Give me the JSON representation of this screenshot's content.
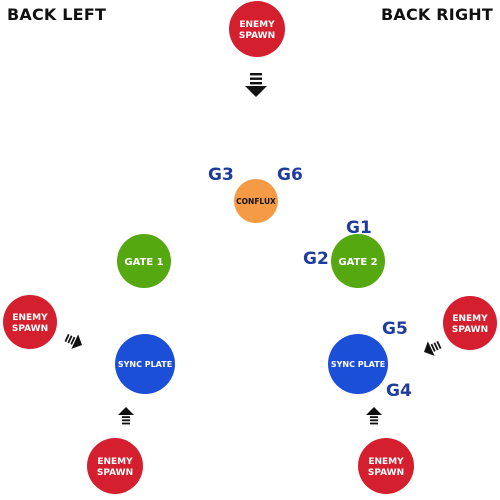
{
  "header": {
    "back_left": "BACK LEFT",
    "back_right": "BACK RIGHT"
  },
  "nodes": {
    "enemy_spawn_top": {
      "line1": "ENEMY",
      "line2": "SPAWN",
      "color": "#d4202e"
    },
    "enemy_spawn_left": {
      "line1": "ENEMY",
      "line2": "SPAWN",
      "color": "#d4202e"
    },
    "enemy_spawn_right": {
      "line1": "ENEMY",
      "line2": "SPAWN",
      "color": "#d4202e"
    },
    "enemy_spawn_bottom_left": {
      "line1": "ENEMY",
      "line2": "SPAWN",
      "color": "#d4202e"
    },
    "enemy_spawn_bottom_right": {
      "line1": "ENEMY",
      "line2": "SPAWN",
      "color": "#d4202e"
    },
    "conflux": {
      "label": "CONFLUX",
      "color": "#f59a45"
    },
    "gate_1": {
      "label": "GATE 1",
      "color": "#55a80f"
    },
    "gate_2": {
      "label": "GATE 2",
      "color": "#55a80f"
    },
    "sync_plate_left": {
      "label": "SYNC PLATE",
      "color": "#1c4fd8"
    },
    "sync_plate_right": {
      "label": "SYNC PLATE",
      "color": "#1c4fd8"
    }
  },
  "markers": {
    "g3": "G3",
    "g6": "G6",
    "g1": "G1",
    "g2": "G2",
    "g5": "G5",
    "g4": "G4",
    "color": "#1f3c9c"
  },
  "arrows": {
    "color": "#111111",
    "items": [
      "arrow-down-from-top-spawn",
      "arrow-right-from-left-spawn",
      "arrow-left-from-right-spawn",
      "arrow-up-from-bottom-left-spawn",
      "arrow-up-from-bottom-right-spawn"
    ]
  }
}
